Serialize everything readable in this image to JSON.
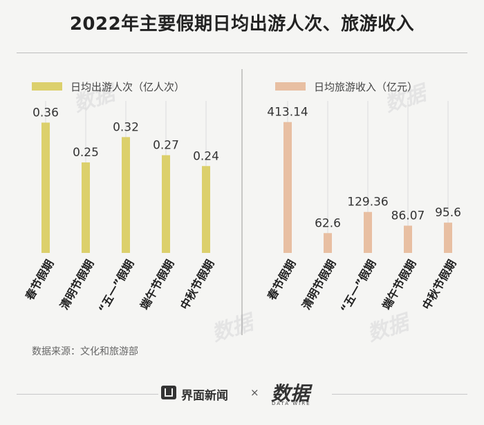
{
  "title": "2022年主要假期日均出游人次、旅游收入",
  "source": "数据来源：文化和旅游部",
  "footer": {
    "brand_left": "界面新闻",
    "separator": "×",
    "brand_right": "数据",
    "brand_right_sub": "DATA WIRE"
  },
  "chart_data": [
    {
      "type": "bar",
      "legend": "日均出游人次（亿人次）",
      "color": "#dcd06c",
      "categories": [
        "春节假期",
        "清明节假期",
        "“五一”假期",
        "端午节假期",
        "中秋节假期"
      ],
      "values": [
        0.36,
        0.25,
        0.32,
        0.27,
        0.24
      ],
      "value_labels": [
        "0.36",
        "0.25",
        "0.32",
        "0.27",
        "0.24"
      ],
      "ylim": [
        0,
        0.42
      ]
    },
    {
      "type": "bar",
      "legend": "日均旅游收入（亿元）",
      "color": "#e8bfa2",
      "categories": [
        "春节假期",
        "清明节假期",
        "“五一”假期",
        "端午节假期",
        "中秋节假期"
      ],
      "values": [
        413.14,
        62.6,
        129.36,
        86.07,
        95.6
      ],
      "value_labels": [
        "413.14",
        "62.6",
        "129.36",
        "86.07",
        "95.6"
      ],
      "ylim": [
        0,
        480
      ]
    }
  ]
}
